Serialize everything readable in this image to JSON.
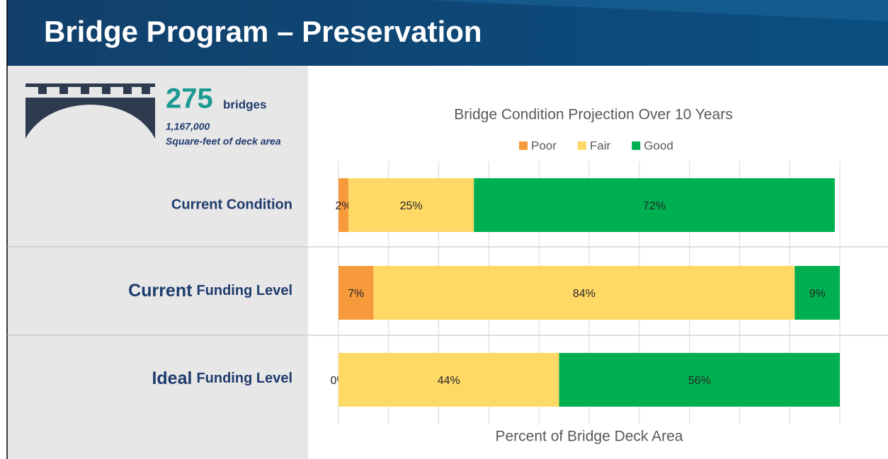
{
  "header": {
    "title": "Bridge Program – Preservation"
  },
  "summary": {
    "count": "275",
    "count_unit": "bridges",
    "area": "1,167,000",
    "area_unit": "Square-feet of deck area"
  },
  "rows": [
    {
      "label": "Current Condition"
    },
    {
      "emphasis": "Current",
      "label": "Funding Level"
    },
    {
      "emphasis": "Ideal",
      "label": "Funding Level"
    }
  ],
  "chart_data": {
    "type": "stacked_barh",
    "title": "Bridge Condition Projection Over 10 Years",
    "xlabel": "Percent of Bridge Deck Area",
    "xlim": [
      0,
      100
    ],
    "xticks": [
      0,
      10,
      20,
      30,
      40,
      50,
      60,
      70,
      80,
      90,
      100
    ],
    "grid": true,
    "legend": "top",
    "series": [
      {
        "name": "Poor",
        "color": "#f79a3b",
        "values": [
          2,
          7,
          0
        ],
        "value_labels": [
          "2%",
          "7%",
          "0%"
        ]
      },
      {
        "name": "Fair",
        "color": "#ffd966",
        "values": [
          25,
          84,
          44
        ],
        "value_labels": [
          "25%",
          "84%",
          "44%"
        ]
      },
      {
        "name": "Good",
        "color": "#00b050",
        "values": [
          72,
          9,
          56
        ],
        "value_labels": [
          "72%",
          "9%",
          "56%"
        ]
      }
    ]
  }
}
